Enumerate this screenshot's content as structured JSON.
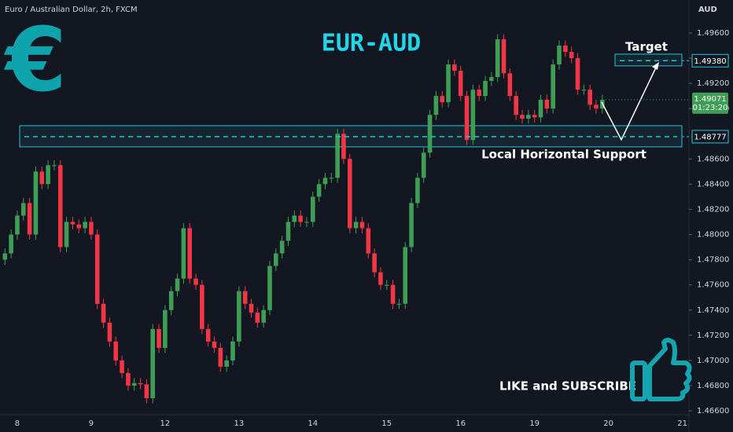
{
  "chart_data": {
    "type": "candlestick",
    "title": "EUR-AUD",
    "symbol_label": "Euro / Australian Dollar, 2h, FXCM",
    "currency": "AUD",
    "logo": "€",
    "cta": "LIKE and SUBSCRIBE",
    "up_color": "#3f9e55",
    "down_color": "#f23645",
    "accent_color": "#22c6d8",
    "grid": false,
    "categories": [
      null,
      null,
      "8",
      null,
      null,
      null,
      null,
      null,
      null,
      null,
      null,
      null,
      null,
      null,
      "9",
      null,
      null,
      null,
      null,
      null,
      null,
      null,
      null,
      null,
      null,
      null,
      "12",
      null,
      null,
      null,
      null,
      null,
      null,
      null,
      null,
      null,
      null,
      null,
      "13",
      null,
      null,
      null,
      null,
      null,
      null,
      null,
      null,
      null,
      null,
      null,
      "14",
      null,
      null,
      null,
      null,
      null,
      null,
      null,
      null,
      null,
      null,
      null,
      "15",
      null,
      null,
      null,
      null,
      null,
      null,
      null,
      null,
      null,
      null,
      null,
      "16",
      null,
      null,
      null,
      null,
      null,
      null,
      null,
      null,
      null,
      null,
      null,
      "19",
      null,
      null,
      null,
      null,
      null,
      null,
      null,
      null,
      null,
      null,
      null,
      "20",
      null,
      null,
      null,
      null,
      null,
      null,
      null,
      null,
      null,
      null,
      null,
      "21"
    ],
    "series": {
      "open": [
        1.478,
        1.4785,
        1.48,
        1.4815,
        1.4825,
        1.48,
        1.485,
        1.484,
        1.4855,
        1.4855,
        1.479,
        1.481,
        1.4808,
        1.4805,
        1.481,
        1.48,
        1.4745,
        1.473,
        1.4715,
        1.47,
        1.469,
        1.468,
        1.4682,
        1.4681,
        1.467,
        1.4725,
        1.471,
        1.474,
        1.4755,
        1.4765,
        1.4805,
        1.4765,
        1.476,
        1.4725,
        1.4715,
        1.471,
        1.4695,
        1.47,
        1.4715,
        1.4755,
        1.4745,
        1.4738,
        1.473,
        1.474,
        1.4775,
        1.4785,
        1.4795,
        1.481,
        1.4815,
        1.481,
        1.481,
        1.483,
        1.484,
        1.4845,
        1.4845,
        1.488,
        1.486,
        1.4805,
        1.481,
        1.4805,
        1.4785,
        1.477,
        1.476,
        1.476,
        1.4745,
        1.4745,
        1.479,
        1.4825,
        1.4845,
        1.4865,
        1.4895,
        1.491,
        1.4905,
        1.4935,
        1.493,
        1.491,
        1.4875,
        1.4915,
        1.491,
        1.4922,
        1.4925,
        1.4955,
        1.4928,
        1.491,
        1.4895,
        1.4892,
        1.4895,
        1.4893,
        1.4907,
        1.49,
        1.4935,
        1.495,
        1.4945,
        1.494,
        1.4915,
        1.4915,
        1.4903,
        1.49,
        null,
        null,
        null,
        null,
        null,
        null,
        null,
        null,
        null,
        null,
        null,
        null,
        null
      ],
      "high": [
        1.4789,
        1.4804,
        1.4819,
        1.4829,
        1.4829,
        1.4854,
        1.4854,
        1.4859,
        1.4859,
        1.4859,
        1.4814,
        1.4814,
        1.4812,
        1.4814,
        1.4814,
        1.4804,
        1.4749,
        1.4734,
        1.4719,
        1.4704,
        1.4694,
        1.4686,
        1.4686,
        1.4685,
        1.4729,
        1.4729,
        1.4744,
        1.4759,
        1.4769,
        1.4809,
        1.4809,
        1.4769,
        1.4764,
        1.4729,
        1.4719,
        1.4714,
        1.4704,
        1.4719,
        1.4759,
        1.4759,
        1.4749,
        1.4742,
        1.4744,
        1.4779,
        1.4789,
        1.4799,
        1.4814,
        1.4819,
        1.4819,
        1.4814,
        1.4834,
        1.4844,
        1.4849,
        1.4849,
        1.4884,
        1.4884,
        1.4864,
        1.4814,
        1.4814,
        1.4809,
        1.4789,
        1.4774,
        1.4764,
        1.4764,
        1.4749,
        1.4794,
        1.4829,
        1.4849,
        1.4869,
        1.4899,
        1.4914,
        1.4914,
        1.4939,
        1.4939,
        1.4934,
        1.4914,
        1.4919,
        1.4919,
        1.4926,
        1.4929,
        1.4959,
        1.4959,
        1.4932,
        1.4914,
        1.4899,
        1.4899,
        1.4899,
        1.4911,
        1.4911,
        1.4939,
        1.4954,
        1.4954,
        1.4949,
        1.4944,
        1.4919,
        1.4919,
        1.4907,
        1.4911,
        null,
        null,
        null,
        null,
        null,
        null,
        null,
        null,
        null,
        null,
        null,
        null,
        null
      ],
      "low": [
        1.4776,
        1.4781,
        1.4796,
        1.4811,
        1.4796,
        1.4796,
        1.4836,
        1.4836,
        1.4851,
        1.4786,
        1.4786,
        1.4804,
        1.4801,
        1.4801,
        1.4796,
        1.4741,
        1.4726,
        1.4711,
        1.4696,
        1.4686,
        1.4676,
        1.4676,
        1.4677,
        1.4666,
        1.4666,
        1.4706,
        1.4706,
        1.4736,
        1.4751,
        1.4761,
        1.4761,
        1.4756,
        1.4721,
        1.4711,
        1.4706,
        1.4691,
        1.4691,
        1.4696,
        1.4711,
        1.4741,
        1.4734,
        1.4726,
        1.4726,
        1.4736,
        1.4771,
        1.4781,
        1.4791,
        1.4806,
        1.4806,
        1.4806,
        1.4806,
        1.4826,
        1.4836,
        1.4841,
        1.4841,
        1.4856,
        1.4801,
        1.4801,
        1.4801,
        1.4781,
        1.4766,
        1.4756,
        1.4756,
        1.4741,
        1.4741,
        1.4741,
        1.4786,
        1.4821,
        1.4841,
        1.4861,
        1.4891,
        1.4901,
        1.4901,
        1.4926,
        1.4906,
        1.4871,
        1.4871,
        1.4906,
        1.4906,
        1.4918,
        1.4921,
        1.4924,
        1.4906,
        1.4891,
        1.4888,
        1.4888,
        1.4889,
        1.4889,
        1.4896,
        1.4896,
        1.4931,
        1.4941,
        1.4936,
        1.4911,
        1.4911,
        1.4899,
        1.4896,
        1.4896,
        null,
        null,
        null,
        null,
        null,
        null,
        null,
        null,
        null,
        null,
        null,
        null,
        null
      ],
      "close": [
        1.4785,
        1.48,
        1.4815,
        1.4825,
        1.48,
        1.485,
        1.484,
        1.4855,
        1.4855,
        1.479,
        1.481,
        1.4808,
        1.4805,
        1.481,
        1.48,
        1.4745,
        1.473,
        1.4715,
        1.47,
        1.469,
        1.468,
        1.4682,
        1.4681,
        1.467,
        1.4725,
        1.471,
        1.474,
        1.4755,
        1.4765,
        1.4805,
        1.4765,
        1.476,
        1.4725,
        1.4715,
        1.471,
        1.4695,
        1.47,
        1.4715,
        1.4755,
        1.4745,
        1.4738,
        1.473,
        1.474,
        1.4775,
        1.4785,
        1.4795,
        1.481,
        1.4815,
        1.481,
        1.481,
        1.483,
        1.484,
        1.4845,
        1.4845,
        1.488,
        1.486,
        1.4805,
        1.481,
        1.4805,
        1.4785,
        1.477,
        1.476,
        1.476,
        1.4745,
        1.4745,
        1.479,
        1.4825,
        1.4845,
        1.4865,
        1.4895,
        1.491,
        1.4905,
        1.4935,
        1.493,
        1.491,
        1.4875,
        1.4915,
        1.491,
        1.4922,
        1.4925,
        1.4955,
        1.4928,
        1.491,
        1.4895,
        1.4892,
        1.4895,
        1.4893,
        1.4907,
        1.49,
        1.4935,
        1.495,
        1.4945,
        1.494,
        1.4915,
        1.4915,
        1.4903,
        1.49,
        1.4907,
        null,
        null,
        null,
        null,
        null,
        null,
        null,
        null,
        null,
        null,
        null,
        null,
        null
      ]
    },
    "ylim": [
      1.46569,
      1.49862
    ],
    "yticks": [
      {
        "value": 1.466,
        "label": "1.46600"
      },
      {
        "value": 1.468,
        "label": "1.46800"
      },
      {
        "value": 1.47,
        "label": "1.47000"
      },
      {
        "value": 1.472,
        "label": "1.47200"
      },
      {
        "value": 1.474,
        "label": "1.47400"
      },
      {
        "value": 1.476,
        "label": "1.47600"
      },
      {
        "value": 1.478,
        "label": "1.47800"
      },
      {
        "value": 1.48,
        "label": "1.48000"
      },
      {
        "value": 1.482,
        "label": "1.48200"
      },
      {
        "value": 1.484,
        "label": "1.48400"
      },
      {
        "value": 1.486,
        "label": "1.48600"
      },
      {
        "value": 1.49,
        "label": "1.49000"
      },
      {
        "value": 1.492,
        "label": "1.49200"
      },
      {
        "value": 1.494,
        "label": "1.49400"
      },
      {
        "value": 1.496,
        "label": "1.49600"
      }
    ],
    "current_price": {
      "value": 1.49071,
      "label": "1.49071",
      "countdown": "01:23:20"
    },
    "zones": [
      {
        "label": "Target",
        "top": 1.49432,
        "bottom": 1.49339,
        "level": {
          "value": 1.4938,
          "label": "1.49380"
        }
      },
      {
        "label": "Local Horizontal Support",
        "top": 1.48864,
        "bottom": 1.48696,
        "level": {
          "value": 1.48777,
          "label": "1.48777"
        }
      }
    ]
  }
}
